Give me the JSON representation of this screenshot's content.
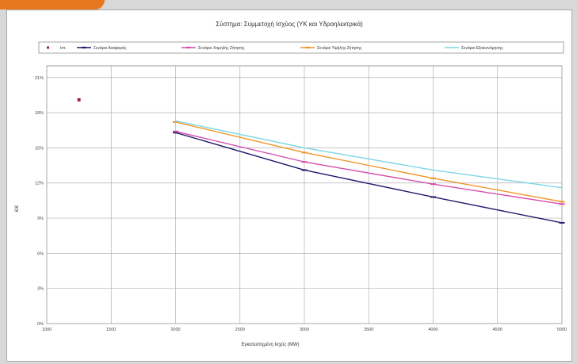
{
  "chart_data": {
    "type": "line",
    "title": "Σύστημα: Συμμετοχή Ισχύος (ΥΚ και Υδροηλεκτρικά)",
    "xlabel": "Εγκατεστημένη Ισχύς (MW)",
    "ylabel": "€/€",
    "xlim": [
      1000,
      5000
    ],
    "ylim": [
      0,
      22
    ],
    "x_ticks": [
      "1000",
      "1500",
      "2000",
      "2500",
      "3000",
      "3500",
      "4000",
      "4500",
      "5000"
    ],
    "y_ticks": [
      "0%",
      "3%",
      "6%",
      "9%",
      "12%",
      "15%",
      "18%",
      "21%"
    ],
    "y_tick_values": [
      0,
      3,
      6,
      9,
      12,
      15,
      18,
      21
    ],
    "grid": true,
    "legend_position": "top",
    "series": [
      {
        "name": "Ιστ.",
        "color": "#9c1b3a",
        "marker": "square",
        "line": false,
        "x": [
          1250
        ],
        "y": [
          19.1
        ]
      },
      {
        "name": "Σενάριο Αναφοράς",
        "color": "#1f1b6e",
        "marker": "dash",
        "x": [
          2000,
          3000,
          4000,
          5000
        ],
        "y": [
          16.3,
          13.1,
          10.8,
          8.6
        ]
      },
      {
        "name": "Σενάριο Χαμηλής Ζήτησης",
        "color": "#d64fb0",
        "marker": "dash",
        "x": [
          2000,
          3000,
          4000,
          5000
        ],
        "y": [
          16.4,
          13.8,
          11.9,
          10.2
        ]
      },
      {
        "name": "Σενάριο Υψηλής Ζήτησης",
        "color": "#f0962a",
        "marker": "dash",
        "x": [
          2000,
          3000,
          4000,
          5000
        ],
        "y": [
          17.2,
          14.6,
          12.4,
          10.4
        ]
      },
      {
        "name": "Σενάριο Εξοικονόμησης",
        "color": "#7fd6e6",
        "marker": "none",
        "x": [
          2000,
          3000,
          4000,
          5000
        ],
        "y": [
          17.3,
          15.0,
          13.1,
          11.6
        ]
      }
    ]
  }
}
